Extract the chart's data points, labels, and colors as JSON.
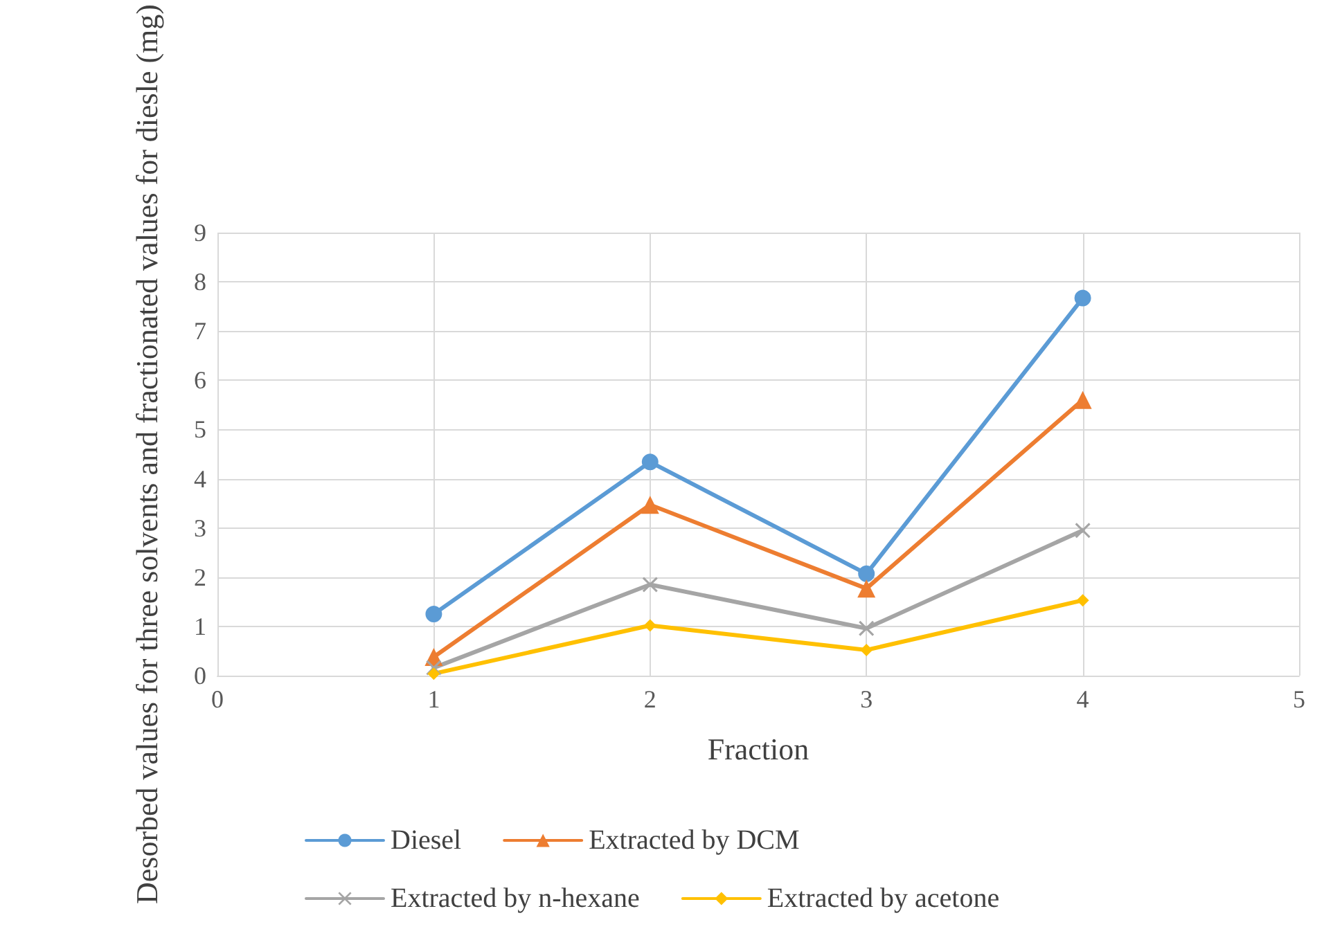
{
  "chart_data": {
    "type": "line",
    "xlabel": "Fraction",
    "ylabel": "Desorbed values for three solvents and fractionated values for diesle (mg)",
    "x": [
      1,
      2,
      3,
      4
    ],
    "xlim": [
      0,
      5
    ],
    "xticks": [
      0,
      1,
      2,
      3,
      4,
      5
    ],
    "ylim": [
      0,
      9
    ],
    "yticks": [
      0,
      1,
      2,
      3,
      4,
      5,
      6,
      7,
      8,
      9
    ],
    "grid": true,
    "legend": "bottom",
    "series": [
      {
        "name": "Diesel",
        "color": "#5b9bd5",
        "marker": "circle",
        "values": [
          1.25,
          4.34,
          2.07,
          7.67
        ]
      },
      {
        "name": "Extracted by DCM",
        "color": "#ed7d31",
        "marker": "triangle",
        "values": [
          0.38,
          3.47,
          1.77,
          5.6
        ]
      },
      {
        "name": "Extracted by n-hexane",
        "color": "#a5a5a5",
        "marker": "cross",
        "values": [
          0.16,
          1.85,
          0.96,
          2.95
        ]
      },
      {
        "name": "Extracted by acetone",
        "color": "#ffc000",
        "marker": "diamond",
        "values": [
          0.04,
          1.02,
          0.52,
          1.53
        ]
      }
    ]
  }
}
